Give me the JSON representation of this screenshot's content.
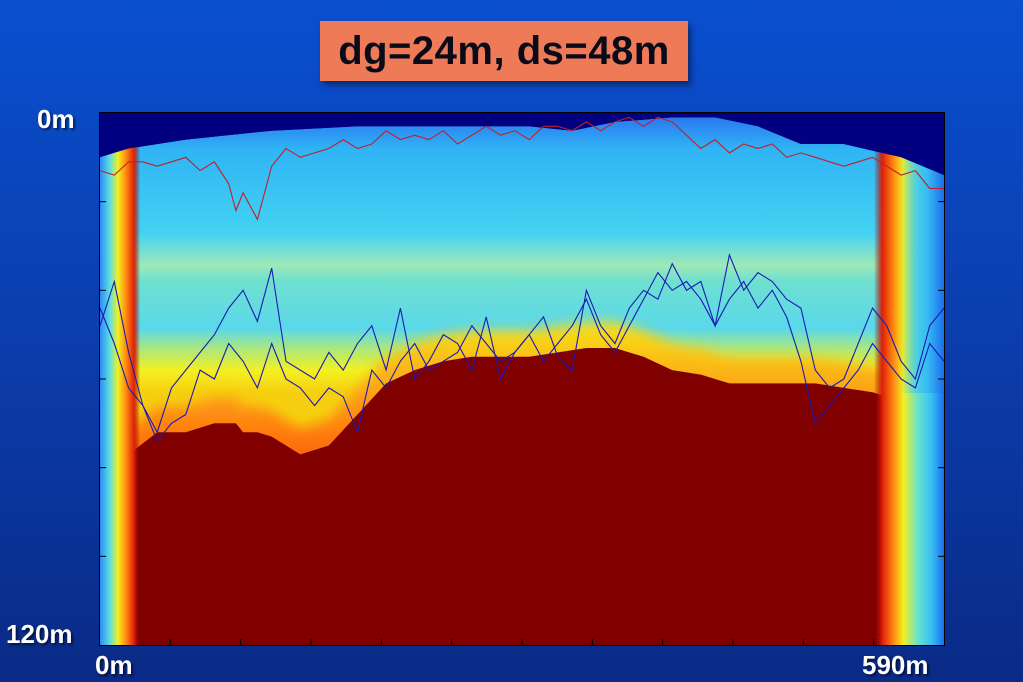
{
  "title": "dg=24m, ds=48m",
  "chart_data": {
    "type": "heatmap",
    "title": "dg=24m, ds=48m",
    "y_tick_labels": [
      "0m",
      "120m"
    ],
    "x_tick_labels": [
      "0m",
      "590m"
    ],
    "xlim": [
      0,
      590
    ],
    "ylim": [
      0,
      120
    ],
    "y_axis_inverted": true,
    "colormap": "jet",
    "colors": {
      "background": "#0b3fb0",
      "title_box": "#ee7a58",
      "low": "#000080",
      "high": "#800000",
      "red_trace": "#c0202a",
      "blue_traces": "#1a1ab4"
    },
    "surface_depth": {
      "x": [
        0,
        20,
        60,
        120,
        180,
        240,
        300,
        330,
        360,
        400,
        430,
        460,
        490,
        520,
        560,
        590
      ],
      "y": [
        10,
        8,
        6,
        4,
        3,
        3,
        3,
        4,
        2,
        1,
        1,
        3,
        7,
        7,
        10,
        14
      ]
    },
    "red_boundary_depth": {
      "x": [
        0,
        20,
        40,
        60,
        80,
        95,
        100,
        110,
        120,
        130,
        140,
        160,
        180,
        200,
        220,
        240,
        260,
        280,
        300,
        320,
        340,
        360,
        380,
        400,
        420,
        440,
        460,
        480,
        500,
        520,
        540,
        560,
        570,
        580,
        590
      ],
      "y": [
        92,
        77,
        72,
        72,
        70,
        70,
        72,
        72,
        73,
        75,
        77,
        75,
        68,
        61,
        58,
        56,
        55,
        55,
        55,
        54,
        53,
        53,
        55,
        58,
        59,
        61,
        61,
        61,
        61,
        62,
        63,
        65,
        66,
        66,
        66
      ]
    },
    "red_trace_depth": {
      "x": [
        0,
        10,
        20,
        30,
        40,
        50,
        60,
        70,
        80,
        90,
        95,
        100,
        110,
        120,
        130,
        140,
        150,
        160,
        170,
        180,
        190,
        200,
        210,
        220,
        230,
        240,
        250,
        260,
        270,
        280,
        290,
        300,
        310,
        320,
        330,
        340,
        350,
        360,
        370,
        380,
        390,
        400,
        410,
        420,
        430,
        440,
        450,
        460,
        470,
        480,
        490,
        500,
        510,
        520,
        530,
        540,
        550,
        560,
        570,
        580,
        590
      ],
      "y": [
        13,
        14,
        11,
        11,
        12,
        11,
        10,
        13,
        11,
        16,
        22,
        18,
        24,
        12,
        8,
        10,
        9,
        8,
        6,
        8,
        7,
        4,
        6,
        5,
        6,
        4,
        7,
        5,
        3,
        5,
        4,
        6,
        3,
        3,
        4,
        2,
        4,
        2,
        1,
        3,
        1,
        2,
        5,
        8,
        6,
        9,
        7,
        8,
        7,
        10,
        9,
        10,
        11,
        12,
        11,
        10,
        12,
        14,
        13,
        17,
        17
      ]
    },
    "blue_trace_1_depth": {
      "x": [
        0,
        10,
        20,
        30,
        40,
        50,
        60,
        70,
        80,
        90,
        100,
        110,
        120,
        130,
        140,
        150,
        160,
        170,
        180,
        190,
        200,
        210,
        220,
        230,
        240,
        250,
        260,
        270,
        280,
        290,
        300,
        310,
        320,
        330,
        340,
        350,
        360,
        370,
        380,
        390,
        400,
        410,
        420,
        430,
        440,
        450,
        460,
        470,
        480,
        490,
        500,
        510,
        520,
        530,
        540,
        550,
        560,
        570,
        580,
        590
      ],
      "y": [
        48,
        38,
        54,
        66,
        72,
        62,
        58,
        54,
        50,
        44,
        40,
        47,
        35,
        56,
        58,
        60,
        54,
        58,
        52,
        48,
        58,
        44,
        60,
        56,
        50,
        52,
        58,
        46,
        60,
        54,
        50,
        46,
        55,
        58,
        40,
        48,
        52,
        44,
        40,
        42,
        34,
        40,
        38,
        48,
        32,
        40,
        36,
        38,
        42,
        44,
        58,
        62,
        60,
        52,
        44,
        48,
        56,
        60,
        48,
        44
      ]
    },
    "blue_trace_2_depth": {
      "x": [
        0,
        10,
        20,
        30,
        40,
        50,
        60,
        70,
        80,
        90,
        100,
        110,
        120,
        130,
        140,
        150,
        160,
        170,
        180,
        190,
        200,
        210,
        220,
        230,
        240,
        250,
        260,
        270,
        280,
        290,
        300,
        310,
        320,
        330,
        340,
        350,
        360,
        370,
        380,
        390,
        400,
        410,
        420,
        430,
        440,
        450,
        460,
        470,
        480,
        490,
        500,
        510,
        520,
        530,
        540,
        550,
        560,
        570,
        580,
        590
      ],
      "y": [
        44,
        52,
        62,
        66,
        74,
        70,
        68,
        58,
        60,
        52,
        56,
        62,
        52,
        60,
        62,
        66,
        62,
        64,
        72,
        58,
        62,
        56,
        52,
        58,
        56,
        54,
        48,
        52,
        56,
        54,
        50,
        56,
        52,
        48,
        42,
        50,
        54,
        48,
        42,
        36,
        40,
        38,
        42,
        48,
        42,
        38,
        44,
        40,
        46,
        56,
        70,
        66,
        62,
        58,
        52,
        56,
        60,
        62,
        52,
        56
      ]
    }
  }
}
